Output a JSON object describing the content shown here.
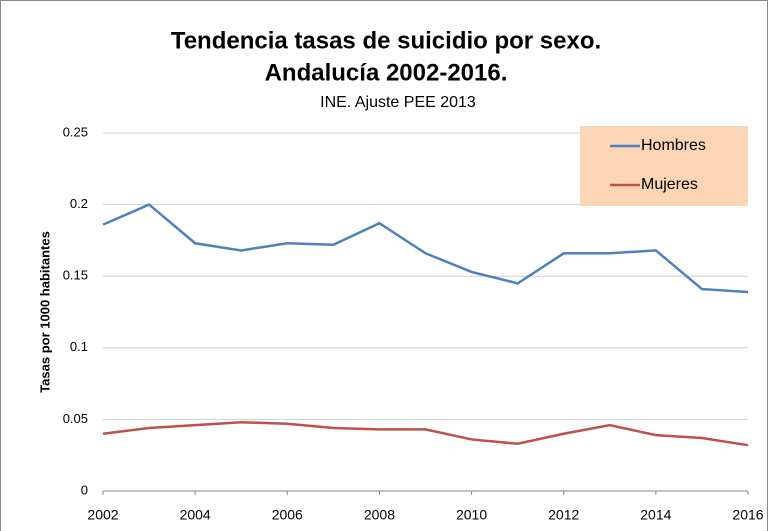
{
  "chart_data": {
    "type": "line",
    "title": [
      "Tendencia tasas de suicidio por sexo.",
      "Andalucía 2002-2016."
    ],
    "subtitle": "INE. Ajuste PEE 2013",
    "y_label": "Tasas por 1000 habitantes",
    "x": [
      2002,
      2003,
      2004,
      2005,
      2006,
      2007,
      2008,
      2009,
      2010,
      2011,
      2012,
      2013,
      2014,
      2015,
      2016
    ],
    "series": [
      {
        "name": "Hombres",
        "color": "#4f81bd",
        "values": [
          0.186,
          0.2,
          0.173,
          0.168,
          0.173,
          0.172,
          0.187,
          0.166,
          0.153,
          0.145,
          0.166,
          0.166,
          0.168,
          0.141,
          0.139
        ]
      },
      {
        "name": "Mujeres",
        "color": "#c0504d",
        "values": [
          0.04,
          0.044,
          0.046,
          0.048,
          0.047,
          0.044,
          0.043,
          0.043,
          0.036,
          0.033,
          0.04,
          0.046,
          0.039,
          0.037,
          0.032
        ]
      }
    ],
    "xlim": [
      2002,
      2016
    ],
    "xticks": [
      2002,
      2004,
      2006,
      2008,
      2010,
      2012,
      2014,
      2016
    ],
    "ylim": [
      0,
      0.25
    ],
    "yticks": [
      0,
      0.05,
      0.1,
      0.15,
      0.2,
      0.25
    ],
    "grid": true,
    "legend": "top-right",
    "legend_color": "#fbd5b5"
  }
}
